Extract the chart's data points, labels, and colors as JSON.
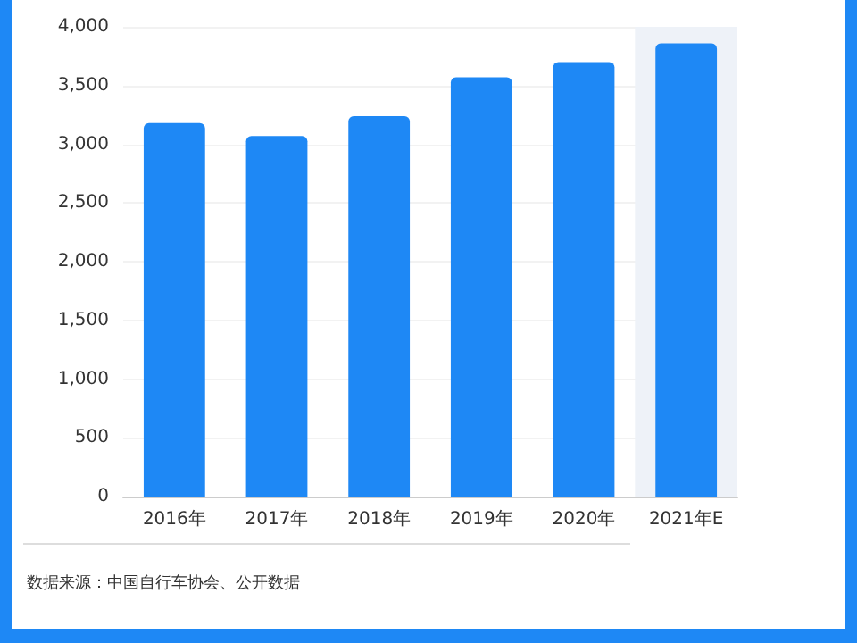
{
  "chart_data": {
    "type": "bar",
    "categories": [
      "2016年",
      "2017年",
      "2018年",
      "2019年",
      "2020年",
      "2021年E"
    ],
    "values": [
      3180,
      3070,
      3240,
      3570,
      3700,
      3860
    ],
    "color": "#1e88f5",
    "ylim": [
      0,
      4000
    ],
    "yticks": [
      0,
      {
        "value": 500,
        "label": "500"
      },
      {
        "value": 1000,
        "label": "1,000"
      },
      {
        "value": 1500,
        "label": "1,500"
      },
      {
        "value": 2000,
        "label": "2,000"
      },
      {
        "value": 2500,
        "label": "2,500"
      },
      {
        "value": 3000,
        "label": "3,000"
      },
      {
        "value": 3500,
        "label": "3,500"
      },
      {
        "value": 4000,
        "label": "4,000"
      }
    ],
    "grid": "y",
    "bands": [
      {
        "axis": "x",
        "from": "2021年E",
        "to": "2021年E",
        "color": "#eef2f8"
      }
    ],
    "annotations": [
      "数据来源：中国自行车协会、公开数据"
    ]
  }
}
